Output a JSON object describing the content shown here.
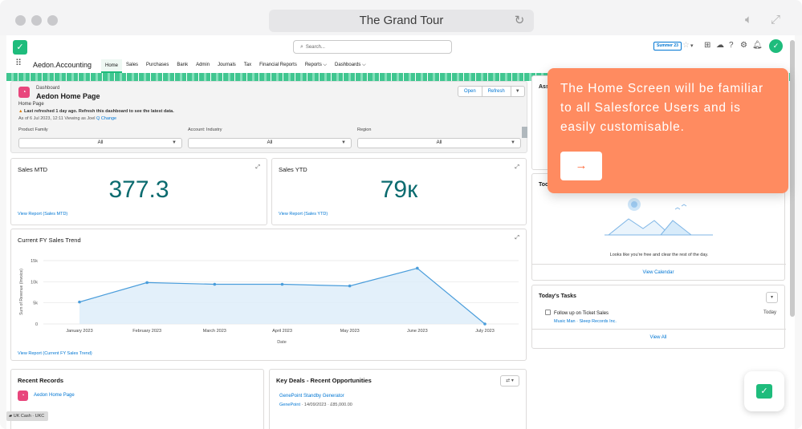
{
  "browser": {
    "title": "The Grand Tour"
  },
  "header": {
    "search_placeholder": "Search...",
    "release_badge": "Summer 23"
  },
  "nav": {
    "app_name": "Aedon.Accounting",
    "items": [
      {
        "label": "Home",
        "active": true
      },
      {
        "label": "Sales"
      },
      {
        "label": "Purchases"
      },
      {
        "label": "Bank"
      },
      {
        "label": "Admin"
      },
      {
        "label": "Journals"
      },
      {
        "label": "Tax"
      },
      {
        "label": "Financial Reports"
      },
      {
        "label": "Reports ⌵"
      },
      {
        "label": "Dashboards ⌵"
      }
    ]
  },
  "dashboard": {
    "type_label": "Dashboard",
    "title": "Aedon Home Page",
    "subtitle": "Home Page",
    "warning": "Last refreshed 1 day ago. Refresh this dashboard to see the latest data.",
    "as_of": "As of 6 Jul 2023, 12:11 Viewing as Joel",
    "change_label": "Q Change",
    "open_label": "Open",
    "refresh_label": "Refresh",
    "filters": [
      {
        "label": "Product Family",
        "value": "All"
      },
      {
        "label": "Account: Industry",
        "value": "All"
      },
      {
        "label": "Region",
        "value": "All"
      }
    ]
  },
  "sales_mtd": {
    "title": "Sales MTD",
    "value": "377.3",
    "link": "View Report (Sales MTD)"
  },
  "sales_ytd": {
    "title": "Sales YTD",
    "value": "79к",
    "link": "View Report (Sales YTD)"
  },
  "trend": {
    "title": "Current FY Sales Trend",
    "link": "View Report (Current FY Sales Trend)"
  },
  "chart_data": {
    "type": "area",
    "title": "Current FY Sales Trend",
    "xlabel": "Date",
    "ylabel": "Sum of Revenue (Invoice)",
    "categories": [
      "January 2023",
      "February 2023",
      "March 2023",
      "April 2023",
      "May 2023",
      "June 2023",
      "July 2023"
    ],
    "values": [
      5200,
      9800,
      9400,
      9400,
      9000,
      13200,
      0
    ],
    "y_ticks": [
      "15k",
      "10k",
      "5k",
      "0"
    ],
    "ylim": [
      0,
      15000
    ],
    "grid": true
  },
  "right": {
    "assistant_label": "Ass",
    "today_label": "Too",
    "calendar_empty": "Looks like you're free and clear the rest of the day.",
    "view_calendar": "View Calendar",
    "tasks_title": "Today's Tasks",
    "task_subject": "Follow up on Ticket Sales",
    "task_who": "Music Man",
    "task_what": "Sleep Records Inc.",
    "task_date": "Today",
    "view_all": "View All"
  },
  "recent": {
    "title": "Recent Records",
    "item": "Aedon Home Page"
  },
  "deals": {
    "title": "Key Deals - Recent Opportunities",
    "opportunity": "GenePoint Standby Generator",
    "account": "GenePoint",
    "details": "14/09/2023 · £85,000.00"
  },
  "tooltip": {
    "text": "The Home Screen will be familiar to all Salesforce Users and is easily customisable.",
    "next_icon": "arrow-right-icon"
  },
  "utility": {
    "label": "UK Cash · UKC"
  },
  "colors": {
    "brand_green": "#1ebc7c",
    "accent_orange": "#ff8b60",
    "link_blue": "#0176d3",
    "metric_teal": "#0b6b6f",
    "chart_line": "#4a9ddb"
  }
}
